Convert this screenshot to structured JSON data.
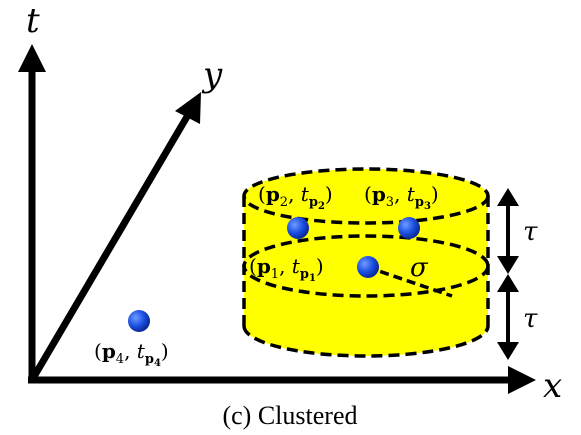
{
  "axes": {
    "t_label": "t",
    "y_label": "y",
    "x_label": "x"
  },
  "points": [
    {
      "id": "p1",
      "name": "p",
      "index": "1",
      "time": "t",
      "time_sub": "p",
      "time_subsub": "1"
    },
    {
      "id": "p2",
      "name": "p",
      "index": "2",
      "time": "t",
      "time_sub": "p",
      "time_subsub": "2"
    },
    {
      "id": "p3",
      "name": "p",
      "index": "3",
      "time": "t",
      "time_sub": "p",
      "time_subsub": "3"
    },
    {
      "id": "p4",
      "name": "p",
      "index": "4",
      "time": "t",
      "time_sub": "p",
      "time_subsub": "4"
    }
  ],
  "symbols": {
    "radius": "σ",
    "tau_upper": "τ",
    "tau_lower": "τ"
  },
  "caption": "(c) Clustered",
  "colors": {
    "cylinder_fill": "#ffff00",
    "point_fill": "#1a4fe0",
    "stroke": "#000000"
  }
}
